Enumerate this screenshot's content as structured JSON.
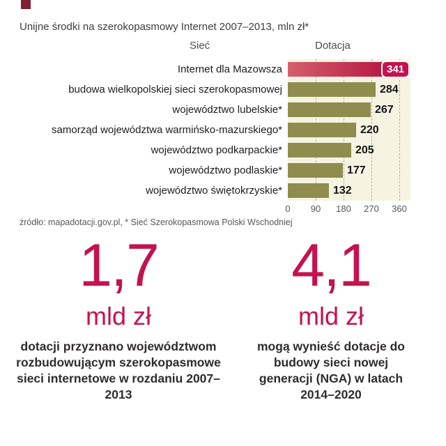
{
  "title": "Unijne środki na szerokopasmowy Internet 2007–2013, mln zł*",
  "chart_data": {
    "type": "bar",
    "orientation": "horizontal",
    "column_headers": {
      "network": "Sieć",
      "grant": "Dotacja"
    },
    "categories": [
      "Internet dla Mazowsza",
      "budowa wielkopolskiej sieci szerokopasmowej",
      "województwo lubelskie*",
      "samorząd województwa warmińsko-mazurskiego*",
      "województwo podkarpackie*",
      "województwo podlaskie*",
      "województwo świętokrzyskie*"
    ],
    "values": [
      341,
      284,
      267,
      220,
      205,
      177,
      132
    ],
    "highlight_index": 0,
    "xlim": [
      0,
      360
    ],
    "ticks": [
      0,
      90,
      180,
      270,
      360
    ],
    "bar_color": "#8f8d4d",
    "highlight_color": "#c3134e",
    "plot_background": "#f7f3e2",
    "grid": "dashed-vertical",
    "legend": "none"
  },
  "source": "źródło: mapadotacji.gov.pl, * Sieć Szerokopasmowa Polski Wschodniej",
  "stats": [
    {
      "value": "1,7",
      "unit": "mld zł",
      "description": "dotacji przyznano województwom rozbudowującym szerokopasmowe sieci internetowe w rozdaniu 2007–2013"
    },
    {
      "value": "4,1",
      "unit": "mld zł",
      "description": "mogą wynieść dotacje do budowy sieci nowej generacji (NGA) w latach 2014–2020"
    }
  ]
}
